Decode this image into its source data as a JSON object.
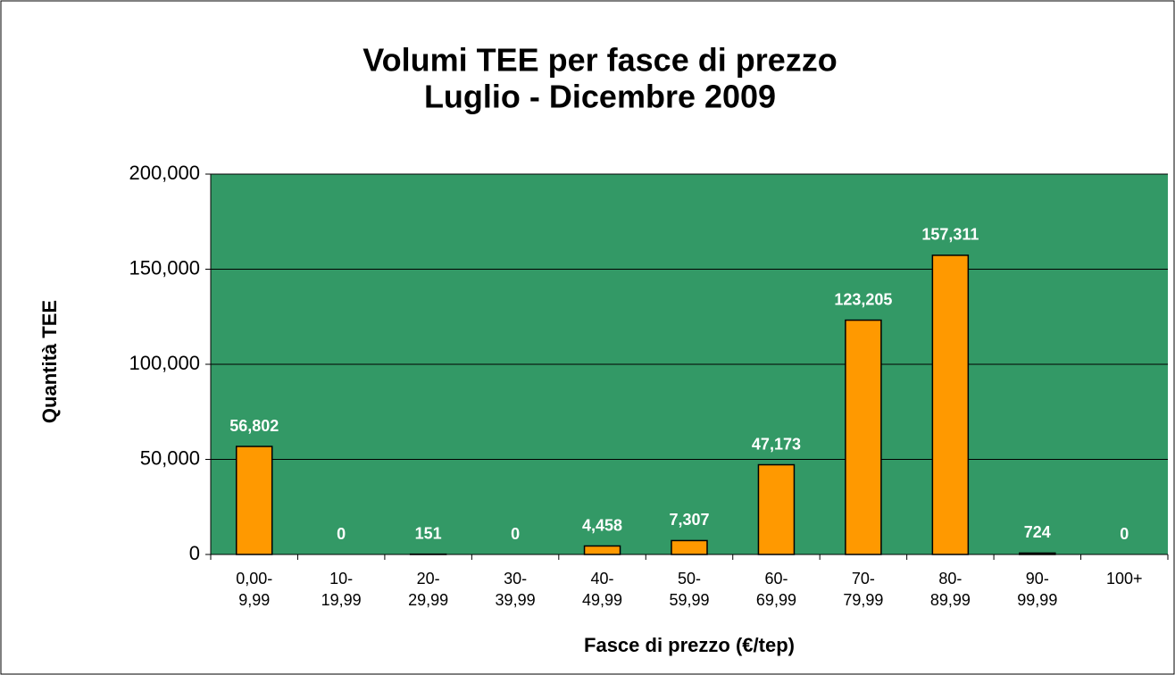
{
  "chart_data": {
    "type": "bar",
    "title": "Volumi TEE per fasce di prezzo",
    "subtitle": "Luglio - Dicembre 2009",
    "x_label": "Fasce di prezzo (€/tep)",
    "y_label": "Quantità TEE",
    "categories": [
      "0,00-\n9,99",
      "10-\n19,99",
      "20-\n29,99",
      "30-\n39,99",
      "40-\n49,99",
      "50-\n59,99",
      "60-\n69,99",
      "70-\n79,99",
      "80-\n89,99",
      "90-\n99,99",
      "100+"
    ],
    "values": [
      56802,
      0,
      151,
      0,
      4458,
      7307,
      47173,
      123205,
      157311,
      724,
      0
    ],
    "value_labels": [
      "56,802",
      "0",
      "151",
      "0",
      "4,458",
      "7,307",
      "47,173",
      "123,205",
      "157,311",
      "724",
      "0"
    ],
    "color": "#ff9900",
    "plot_background": "#339966",
    "ylim": [
      0,
      200000
    ],
    "yticks": [
      0,
      {
        "value": 50000,
        "label": "50,000"
      },
      {
        "value": 100000,
        "label": "100,000"
      },
      {
        "value": 150000,
        "label": "150,000"
      },
      {
        "value": 200000,
        "label": "200,000"
      }
    ],
    "grid": true
  }
}
